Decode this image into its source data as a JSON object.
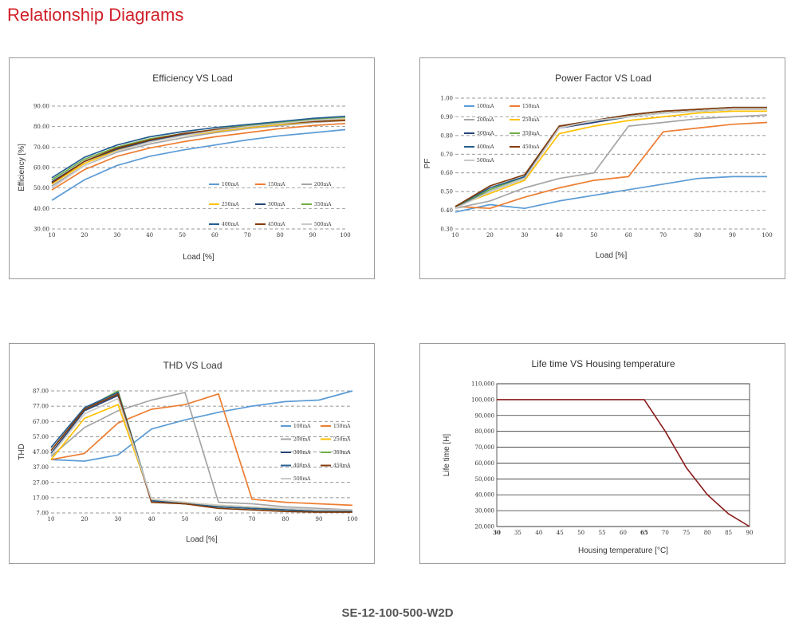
{
  "page": {
    "title": "Relationship Diagrams",
    "model": "SE-12-100-500-W2D"
  },
  "chart_data": [
    {
      "id": "eff",
      "type": "line",
      "title": "Efficiency VS Load",
      "xlabel": "Load [%]",
      "ylabel": "Efficiency [%]",
      "xlim": [
        10,
        100
      ],
      "ylim": [
        30,
        90
      ],
      "x": [
        10,
        20,
        30,
        40,
        50,
        60,
        70,
        80,
        90,
        100
      ],
      "xticks": [
        "10",
        "20",
        "30",
        "40",
        "50",
        "60",
        "70",
        "80",
        "90",
        "100"
      ],
      "yticks": [
        {
          "v": 30,
          "t": "30.00"
        },
        {
          "v": 40,
          "t": "40.00"
        },
        {
          "v": 50,
          "t": "50.00"
        },
        {
          "v": 60,
          "t": "60.00"
        },
        {
          "v": 70,
          "t": "70.00"
        },
        {
          "v": 80,
          "t": "80.00"
        },
        {
          "v": 90,
          "t": "90.00"
        }
      ],
      "grid": "dashed-horizontal",
      "legend_position": "inside-bottom-right",
      "legend_cols": 3,
      "series": [
        {
          "name": "100mA",
          "color": "#5b9bd5",
          "values": [
            44,
            54,
            61,
            65.5,
            68.5,
            71,
            73.5,
            75.5,
            77,
            78.5
          ]
        },
        {
          "name": "150mA",
          "color": "#ed7d31",
          "values": [
            49,
            59,
            65.5,
            69.5,
            72.5,
            75,
            77,
            79,
            80.5,
            81.5
          ]
        },
        {
          "name": "200mA",
          "color": "#a5a5a5",
          "values": [
            51,
            61,
            67.5,
            71.5,
            74.5,
            77,
            79,
            80.5,
            82,
            83
          ]
        },
        {
          "name": "250mA",
          "color": "#ffc000",
          "values": [
            52,
            62,
            68.5,
            72.5,
            75.5,
            77.5,
            79.5,
            81,
            82.5,
            83.5
          ]
        },
        {
          "name": "300mA",
          "color": "#264478",
          "values": [
            53,
            63,
            69,
            73,
            76,
            78,
            80,
            81.5,
            83,
            84
          ]
        },
        {
          "name": "350mA",
          "color": "#70ad47",
          "values": [
            54,
            64,
            70,
            74,
            76.5,
            78.5,
            80.5,
            82,
            83.5,
            84.5
          ]
        },
        {
          "name": "400mA",
          "color": "#255e91",
          "values": [
            55,
            65,
            71,
            75,
            77.5,
            79.5,
            81,
            82.5,
            84,
            85
          ]
        },
        {
          "name": "450mA",
          "color": "#843c0c",
          "values": [
            52.5,
            63,
            69.5,
            73.5,
            76.5,
            78.5,
            80,
            81.5,
            82.5,
            83
          ]
        },
        {
          "name": "500mA",
          "color": "#c9c9c9",
          "values": [
            50,
            61,
            68,
            72.5,
            75.5,
            78,
            80,
            81.5,
            83,
            84
          ]
        }
      ]
    },
    {
      "id": "pf",
      "type": "line",
      "title": "Power Factor VS Load",
      "xlabel": "Load [%]",
      "ylabel": "PF",
      "xlim": [
        10,
        100
      ],
      "ylim": [
        0.3,
        1.0
      ],
      "x": [
        10,
        20,
        30,
        40,
        50,
        60,
        70,
        80,
        90,
        100
      ],
      "xticks": [
        "10",
        "20",
        "30",
        "40",
        "50",
        "60",
        "70",
        "80",
        "90",
        "100"
      ],
      "yticks": [
        {
          "v": 0.3,
          "t": "0.30"
        },
        {
          "v": 0.4,
          "t": "0.40"
        },
        {
          "v": 0.5,
          "t": "0.50"
        },
        {
          "v": 0.6,
          "t": "0.60"
        },
        {
          "v": 0.7,
          "t": "0.70"
        },
        {
          "v": 0.8,
          "t": "0.80"
        },
        {
          "v": 0.9,
          "t": "0.90"
        },
        {
          "v": 1.0,
          "t": "1.00"
        }
      ],
      "grid": "dashed-horizontal",
      "legend_position": "inside-top-left",
      "legend_cols": 2,
      "series": [
        {
          "name": "100mA",
          "color": "#5b9bd5",
          "values": [
            0.39,
            0.43,
            0.41,
            0.45,
            0.48,
            0.51,
            0.54,
            0.57,
            0.58,
            0.58
          ]
        },
        {
          "name": "150mA",
          "color": "#ed7d31",
          "values": [
            0.42,
            0.41,
            0.47,
            0.52,
            0.56,
            0.58,
            0.82,
            0.84,
            0.86,
            0.87
          ]
        },
        {
          "name": "200mA",
          "color": "#a5a5a5",
          "values": [
            0.41,
            0.45,
            0.52,
            0.57,
            0.6,
            0.85,
            0.87,
            0.89,
            0.9,
            0.91
          ]
        },
        {
          "name": "250mA",
          "color": "#ffc000",
          "values": [
            0.42,
            0.49,
            0.56,
            0.81,
            0.85,
            0.88,
            0.9,
            0.92,
            0.93,
            0.93
          ]
        },
        {
          "name": "300mA",
          "color": "#264478",
          "values": [
            0.42,
            0.5,
            0.57,
            0.84,
            0.87,
            0.9,
            0.92,
            0.93,
            0.94,
            0.94
          ]
        },
        {
          "name": "350mA",
          "color": "#70ad47",
          "values": [
            0.42,
            0.51,
            0.58,
            0.85,
            0.88,
            0.9,
            0.92,
            0.93,
            0.94,
            0.94
          ]
        },
        {
          "name": "400mA",
          "color": "#255e91",
          "values": [
            0.42,
            0.52,
            0.58,
            0.85,
            0.88,
            0.91,
            0.93,
            0.94,
            0.95,
            0.95
          ]
        },
        {
          "name": "450mA",
          "color": "#843c0c",
          "values": [
            0.42,
            0.53,
            0.59,
            0.85,
            0.88,
            0.91,
            0.93,
            0.94,
            0.95,
            0.95
          ]
        },
        {
          "name": "500mA",
          "color": "#c9c9c9",
          "values": [
            0.41,
            0.5,
            0.57,
            0.84,
            0.88,
            0.9,
            0.92,
            0.93,
            0.94,
            0.94
          ]
        }
      ]
    },
    {
      "id": "thd",
      "type": "line",
      "title": "THD VS Load",
      "xlabel": "Load [%]",
      "ylabel": "THD",
      "xlim": [
        10,
        100
      ],
      "ylim": [
        7,
        87
      ],
      "x": [
        10,
        20,
        30,
        40,
        50,
        60,
        70,
        80,
        90,
        100
      ],
      "xticks": [
        "10",
        "20",
        "30",
        "40",
        "50",
        "60",
        "70",
        "80",
        "90",
        "100"
      ],
      "yticks": [
        {
          "v": 7,
          "t": "7.00"
        },
        {
          "v": 17,
          "t": "17.00"
        },
        {
          "v": 27,
          "t": "27.00"
        },
        {
          "v": 37,
          "t": "37.00"
        },
        {
          "v": 47,
          "t": "47.00"
        },
        {
          "v": 57,
          "t": "57.00"
        },
        {
          "v": 67,
          "t": "67.00"
        },
        {
          "v": 77,
          "t": "77.00"
        },
        {
          "v": 87,
          "t": "87.00"
        }
      ],
      "grid": "dashed-horizontal",
      "legend_position": "inside-middle-right",
      "legend_cols": 2,
      "series": [
        {
          "name": "100mA",
          "color": "#5b9bd5",
          "values": [
            42,
            41,
            45,
            62,
            68,
            73,
            77,
            80,
            81,
            87
          ]
        },
        {
          "name": "150mA",
          "color": "#ed7d31",
          "values": [
            42,
            46,
            66,
            75,
            78,
            85,
            16,
            14,
            13,
            12
          ]
        },
        {
          "name": "200mA",
          "color": "#a5a5a5",
          "values": [
            44,
            63,
            74,
            81,
            86,
            14,
            13,
            11,
            10,
            9
          ]
        },
        {
          "name": "250mA",
          "color": "#ffc000",
          "values": [
            42,
            69,
            78,
            16,
            14,
            12,
            11,
            9,
            8,
            8
          ]
        },
        {
          "name": "300mA",
          "color": "#264478",
          "values": [
            46,
            74,
            84,
            15,
            13,
            11,
            10,
            9,
            8,
            8
          ]
        },
        {
          "name": "350mA",
          "color": "#70ad47",
          "values": [
            48,
            75,
            87,
            15,
            13,
            11,
            10,
            9,
            8,
            8
          ]
        },
        {
          "name": "400mA",
          "color": "#255e91",
          "values": [
            50,
            76,
            86,
            15,
            13,
            11,
            10,
            9,
            8,
            8
          ]
        },
        {
          "name": "450mA",
          "color": "#843c0c",
          "values": [
            48,
            75,
            85,
            14,
            13,
            10,
            9,
            8,
            7.5,
            7.5
          ]
        },
        {
          "name": "500mA",
          "color": "#c9c9c9",
          "values": [
            45,
            72,
            82,
            16,
            14,
            12,
            11,
            10,
            9,
            9
          ]
        }
      ]
    },
    {
      "id": "life",
      "type": "line",
      "title": "Life time VS Housing temperature",
      "xlabel": "Housing temperature [°C]",
      "ylabel": "Life time [H]",
      "xlim": [
        30,
        90
      ],
      "ylim": [
        20000,
        110000
      ],
      "x": [
        30,
        35,
        40,
        45,
        50,
        55,
        60,
        65,
        70,
        75,
        80,
        85,
        90
      ],
      "xticks": [
        "30",
        "35",
        "40",
        "45",
        "50",
        "55",
        "60",
        "65",
        "70",
        "75",
        "80",
        "85",
        "90"
      ],
      "yticks": [
        {
          "v": 20000,
          "t": "20,000"
        },
        {
          "v": 30000,
          "t": "30,000"
        },
        {
          "v": 40000,
          "t": "40,000"
        },
        {
          "v": 50000,
          "t": "50,000"
        },
        {
          "v": 60000,
          "t": "60,000"
        },
        {
          "v": 70000,
          "t": "70,000"
        },
        {
          "v": 80000,
          "t": "80,000"
        },
        {
          "v": 90000,
          "t": "90,000"
        },
        {
          "v": 100000,
          "t": "100,000"
        },
        {
          "v": 110000,
          "t": "110,000"
        }
      ],
      "grid": "solid-horizontal",
      "legend_position": "none",
      "series": [
        {
          "color": "#8b1a1a",
          "values": [
            100000,
            100000,
            100000,
            100000,
            100000,
            100000,
            100000,
            100000,
            80000,
            57000,
            40000,
            28000,
            20000
          ]
        }
      ]
    }
  ]
}
